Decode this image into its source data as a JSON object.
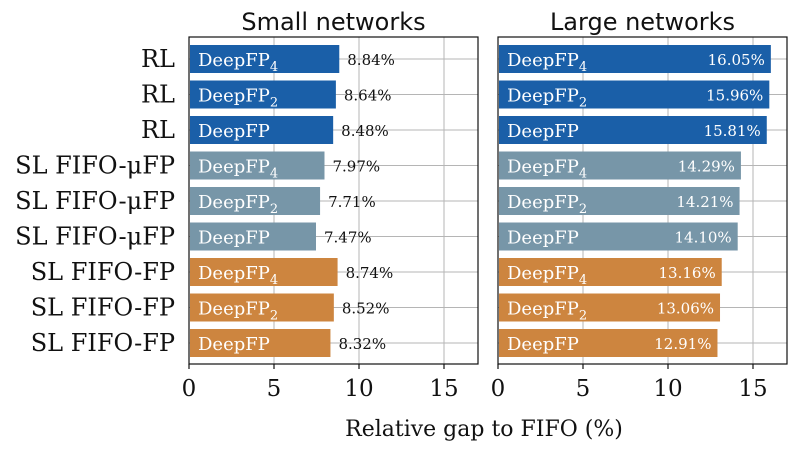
{
  "chart_data": {
    "type": "bar",
    "orientation": "horizontal",
    "xlabel": "Relative gap to FIFO (%)",
    "xlim": [
      0,
      17
    ],
    "xticks": [
      0,
      5,
      10,
      15
    ],
    "grid": true,
    "categories": [
      "RL",
      "RL",
      "RL",
      "SL FIFO-μFP",
      "SL FIFO-μFP",
      "SL FIFO-μFP",
      "SL FIFO-FP",
      "SL FIFO-FP",
      "SL FIFO-FP"
    ],
    "bar_labels": [
      {
        "base": "DeepFP",
        "sub": "4"
      },
      {
        "base": "DeepFP",
        "sub": "2"
      },
      {
        "base": "DeepFP",
        "sub": ""
      },
      {
        "base": "DeepFP",
        "sub": "4"
      },
      {
        "base": "DeepFP",
        "sub": "2"
      },
      {
        "base": "DeepFP",
        "sub": ""
      },
      {
        "base": "DeepFP",
        "sub": "4"
      },
      {
        "base": "DeepFP",
        "sub": "2"
      },
      {
        "base": "DeepFP",
        "sub": ""
      }
    ],
    "group_colors": [
      "#1a5fa8",
      "#1a5fa8",
      "#1a5fa8",
      "#7796a8",
      "#7796a8",
      "#7796a8",
      "#cd853f",
      "#cd853f",
      "#cd853f"
    ],
    "panels": [
      {
        "title": "Small networks",
        "values": [
          8.84,
          8.64,
          8.48,
          7.97,
          7.71,
          7.47,
          8.74,
          8.52,
          8.32
        ],
        "value_labels": [
          "8.84%",
          "8.64%",
          "8.48%",
          "7.97%",
          "7.71%",
          "7.47%",
          "8.74%",
          "8.52%",
          "8.32%"
        ],
        "label_position": "outside"
      },
      {
        "title": "Large networks",
        "values": [
          16.05,
          15.96,
          15.81,
          14.29,
          14.21,
          14.1,
          13.16,
          13.06,
          12.91
        ],
        "value_labels": [
          "16.05%",
          "15.96%",
          "15.81%",
          "14.29%",
          "14.21%",
          "14.10%",
          "13.16%",
          "13.06%",
          "12.91%"
        ],
        "label_position": "inside"
      }
    ]
  }
}
